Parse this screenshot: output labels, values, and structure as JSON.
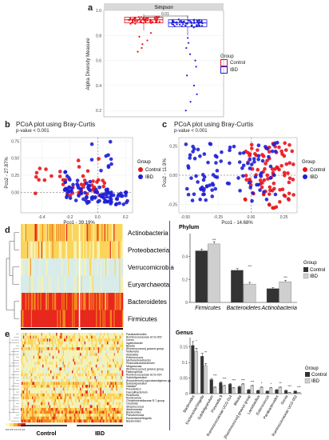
{
  "panels": {
    "a": {
      "label": "a"
    },
    "b": {
      "label": "b",
      "title": "PCoA plot using Bray-Curtis",
      "pvalue": "p-value < 0.001"
    },
    "c": {
      "label": "c",
      "title": "PCoA plot using Bray-Curtis",
      "pvalue": "p-value < 0.001"
    },
    "d": {
      "label": "d"
    },
    "e": {
      "label": "e"
    }
  },
  "colors": {
    "control": "#e8141c",
    "ibd": "#1f1fd6",
    "dark_bar": "#333333",
    "light_bar": "#cfcfcf"
  },
  "chart_data": [
    {
      "id": "a",
      "type": "scatter",
      "strip_title": "Simpson",
      "ylabel": "Alpha Diversity Measure",
      "ylim": [
        0.15,
        1.0
      ],
      "yticks": [
        0.2,
        0.4,
        0.6,
        0.8,
        1.0
      ],
      "annotation": "0.01",
      "legend": {
        "title": "Group",
        "entries": [
          "Control",
          "IBD"
        ]
      },
      "series": [
        {
          "name": "Control",
          "box": {
            "q1": 0.9,
            "median": 0.925,
            "q3": 0.945,
            "whisker_low": 0.84,
            "whisker_high": 0.97
          },
          "outliers": [
            0.82,
            0.79,
            0.76,
            0.73,
            0.7,
            0.67
          ]
        },
        {
          "name": "IBD",
          "box": {
            "q1": 0.87,
            "median": 0.9,
            "q3": 0.925,
            "whisker_low": 0.8,
            "whisker_high": 0.96
          },
          "outliers": [
            0.78,
            0.74,
            0.7,
            0.65,
            0.6,
            0.55,
            0.48,
            0.4,
            0.33,
            0.27,
            0.2
          ]
        }
      ]
    },
    {
      "id": "b",
      "type": "scatter",
      "xlabel": "Pco1 - 39.19%",
      "ylabel": "Pco2 - 27.87%",
      "xlim": [
        -0.55,
        0.25
      ],
      "ylim": [
        -0.3,
        0.8
      ],
      "xticks": [
        -0.4,
        -0.2,
        0.0,
        0.2
      ],
      "xtick_labels": [
        "-0.4",
        "-0.2",
        "0.0",
        "0.2"
      ],
      "yticks": [
        0.0,
        0.25,
        0.5,
        0.75
      ],
      "ytick_labels": [
        "0.00",
        "0.25",
        "0.50",
        "0.75"
      ],
      "legend": {
        "title": "Group",
        "entries": [
          "Control",
          "IBD"
        ]
      }
    },
    {
      "id": "c",
      "type": "scatter",
      "xlabel": "Pco1 - 14.68%",
      "ylabel": "Pco2 - 11.9%",
      "xlim": [
        -0.55,
        0.35
      ],
      "ylim": [
        -0.32,
        0.32
      ],
      "xticks": [
        -0.5,
        -0.25,
        0.0,
        0.25
      ],
      "xtick_labels": [
        "-0.50",
        "-0.25",
        "0.00",
        "0.25"
      ],
      "yticks": [
        -0.25,
        0.0,
        0.25
      ],
      "ytick_labels": [
        "-0.25",
        "0.00",
        "0.25"
      ],
      "legend": {
        "title": "Group",
        "entries": [
          "Control",
          "IBD"
        ]
      }
    },
    {
      "id": "d-heatmap",
      "type": "heatmap",
      "rows": [
        "Actinobacteria",
        "Proteobacteria",
        "Verrucomicrobia",
        "Euryarchaeota",
        "Bacteroidetes",
        "Firmicutes"
      ],
      "row_levels": [
        0.55,
        0.5,
        0.12,
        0.08,
        0.85,
        0.95
      ],
      "columns": [
        "Control",
        "IBD"
      ]
    },
    {
      "id": "d-bar",
      "type": "bar",
      "title": "Phylum",
      "categories": [
        "Firmicutes",
        "Bacteroidetes",
        "Actinobacteria"
      ],
      "series": [
        {
          "name": "Control",
          "values": [
            0.45,
            0.28,
            0.12
          ]
        },
        {
          "name": "IBD",
          "values": [
            0.51,
            0.16,
            0.18
          ]
        }
      ],
      "error": [
        [
          0.015,
          0.02
        ],
        [
          0.015,
          0.015
        ],
        [
          0.01,
          0.012
        ]
      ],
      "significance": [
        "***",
        "***",
        "***"
      ],
      "ylim": [
        0,
        0.6
      ],
      "yticks": [
        0,
        0.2,
        0.4
      ],
      "ytick_labels": [
        "0",
        "0.2",
        "0.4"
      ],
      "legend": {
        "title": "Group",
        "entries": [
          "Control",
          "IBD"
        ]
      }
    },
    {
      "id": "e-heatmap",
      "type": "heatmap",
      "rows": [
        "Parabacteroides",
        "Ruminococcaceae UCG-002",
        "Dorea",
        "Agathobacter",
        "Blautia",
        "[Ruminococcus] gnavus group",
        "Veillonella",
        "Klebsiella",
        "Enterococcus",
        "Methanobrevibacter",
        "Phascolarctobacterium",
        "Megamonas",
        "[Ruminococcus] gnavus group",
        "Haemophilus",
        "Ruminococcaceae UCG-014",
        "Subdoligranulum",
        "[Eubacterium] coprostanoligenes group",
        "Subdoligranulum",
        "Dialister",
        "Prevotella 9",
        "Faecalibacterium",
        "Roseburia",
        "Romboutsia",
        "Christensenellaceae R-7 group",
        "Clostridia",
        "Streptococcus",
        "Akkermansia",
        "Bacteroides",
        "Pseudomonas",
        "Escherichia/Shigella",
        "Bacteroides"
      ],
      "columns": [
        "Control",
        "IBD"
      ],
      "scale_label": "0.0 0.5 1.0 1.5 2.0"
    },
    {
      "id": "e-bar",
      "type": "bar",
      "title": "Genus",
      "categories": [
        "Bacteroides",
        "Escherichia/Shigella",
        "Subdoligranulum",
        "Prevotella 9",
        "Ruminococcaceae UCG-014",
        "Blautia",
        "[Ruminococcus] gnavus group",
        "Lactobacillus",
        "Enterococcus",
        "Parabacteroides",
        "Dorea",
        "Ruminococcaceae UCG-002"
      ],
      "series": [
        {
          "name": "Control",
          "values": [
            0.155,
            0.12,
            0.045,
            0.035,
            0.03,
            0.022,
            0.012,
            0.01,
            0.008,
            0.012,
            0.01,
            0.008
          ]
        },
        {
          "name": "IBD",
          "values": [
            0.135,
            0.09,
            0.02,
            0.025,
            0.018,
            0.03,
            0.025,
            0.02,
            0.018,
            0.02,
            0.004,
            0.003
          ]
        }
      ],
      "significance": [
        "*",
        "**",
        "***",
        "***",
        "***",
        "***",
        "***",
        "*",
        "*",
        "**",
        "***",
        "***"
      ],
      "ylim": [
        0,
        0.18
      ],
      "yticks": [
        0,
        0.05,
        0.1,
        0.15
      ],
      "ytick_labels": [
        "0",
        "0.05",
        "0.1",
        "0.15"
      ],
      "legend": {
        "title": "Group",
        "entries": [
          "Control",
          "IBD"
        ]
      }
    }
  ]
}
